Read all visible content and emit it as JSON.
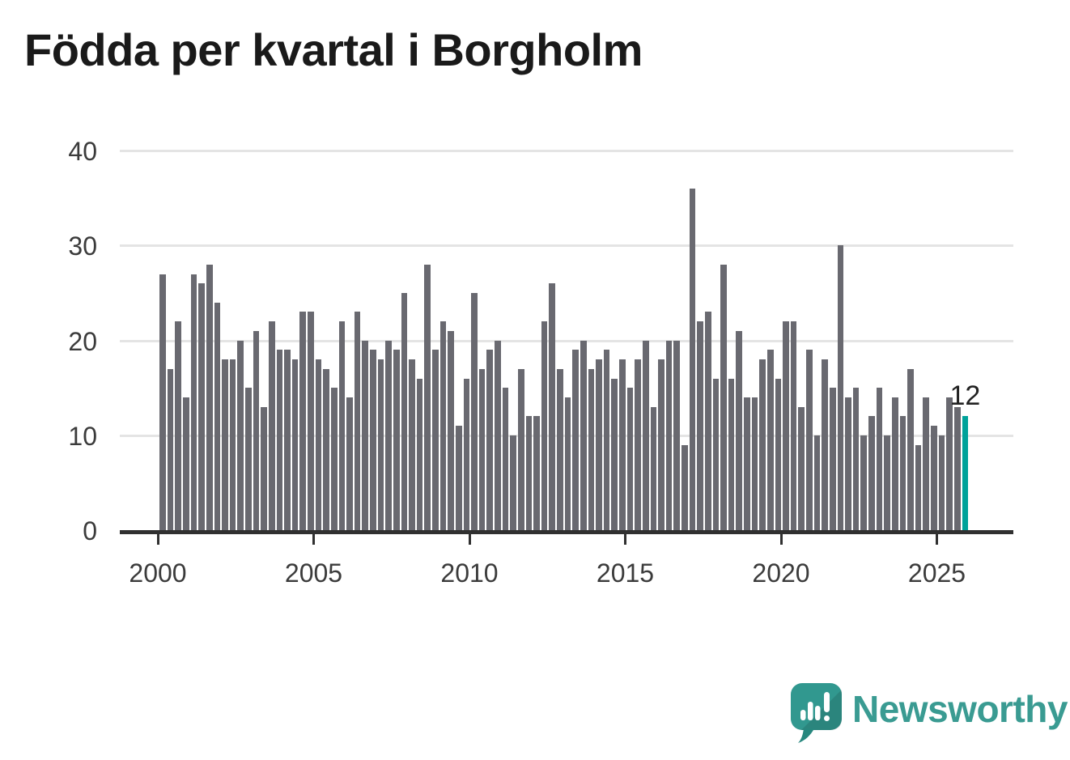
{
  "title": "Födda per kvartal i Borgholm",
  "branding": {
    "wordmark": "Newsworthy",
    "logo_icon": "speech-bubble-bar-chart-exclamation-icon"
  },
  "chart_data": {
    "type": "bar",
    "title": "Födda per kvartal i Borgholm",
    "xlabel": "",
    "ylabel": "",
    "ylim": [
      0,
      40
    ],
    "y_ticks": [
      0,
      10,
      20,
      30,
      40
    ],
    "x_tick_labels": [
      "2000",
      "2005",
      "2010",
      "2015",
      "2020",
      "2025"
    ],
    "grid": "horizontal",
    "legend": "none",
    "highlight_last_bar": true,
    "annotation_label": "12",
    "categories": [
      "2000 Q1",
      "2000 Q2",
      "2000 Q3",
      "2000 Q4",
      "2001 Q1",
      "2001 Q2",
      "2001 Q3",
      "2001 Q4",
      "2002 Q1",
      "2002 Q2",
      "2002 Q3",
      "2002 Q4",
      "2003 Q1",
      "2003 Q2",
      "2003 Q3",
      "2003 Q4",
      "2004 Q1",
      "2004 Q2",
      "2004 Q3",
      "2004 Q4",
      "2005 Q1",
      "2005 Q2",
      "2005 Q3",
      "2005 Q4",
      "2006 Q1",
      "2006 Q2",
      "2006 Q3",
      "2006 Q4",
      "2007 Q1",
      "2007 Q2",
      "2007 Q3",
      "2007 Q4",
      "2008 Q1",
      "2008 Q2",
      "2008 Q3",
      "2008 Q4",
      "2009 Q1",
      "2009 Q2",
      "2009 Q3",
      "2009 Q4",
      "2010 Q1",
      "2010 Q2",
      "2010 Q3",
      "2010 Q4",
      "2011 Q1",
      "2011 Q2",
      "2011 Q3",
      "2011 Q4",
      "2012 Q1",
      "2012 Q2",
      "2012 Q3",
      "2012 Q4",
      "2013 Q1",
      "2013 Q2",
      "2013 Q3",
      "2013 Q4",
      "2014 Q1",
      "2014 Q2",
      "2014 Q3",
      "2014 Q4",
      "2015 Q1",
      "2015 Q2",
      "2015 Q3",
      "2015 Q4",
      "2016 Q1",
      "2016 Q2",
      "2016 Q3",
      "2016 Q4",
      "2017 Q1",
      "2017 Q2",
      "2017 Q3",
      "2017 Q4",
      "2018 Q1",
      "2018 Q2",
      "2018 Q3",
      "2018 Q4",
      "2019 Q1",
      "2019 Q2",
      "2019 Q3",
      "2019 Q4",
      "2020 Q1",
      "2020 Q2",
      "2020 Q3",
      "2020 Q4",
      "2021 Q1",
      "2021 Q2",
      "2021 Q3",
      "2021 Q4",
      "2022 Q1",
      "2022 Q2",
      "2022 Q3",
      "2022 Q4",
      "2023 Q1",
      "2023 Q2",
      "2023 Q3",
      "2023 Q4",
      "2024 Q1",
      "2024 Q2",
      "2024 Q3",
      "2024 Q4",
      "2025 Q1",
      "2025 Q2",
      "2025 Q3",
      "2025 Q4"
    ],
    "values": [
      27,
      17,
      22,
      14,
      27,
      26,
      28,
      24,
      18,
      18,
      20,
      15,
      21,
      13,
      22,
      19,
      19,
      18,
      23,
      23,
      18,
      17,
      15,
      22,
      14,
      23,
      20,
      19,
      18,
      20,
      19,
      25,
      18,
      16,
      28,
      19,
      22,
      21,
      11,
      16,
      25,
      17,
      19,
      20,
      15,
      10,
      17,
      12,
      12,
      22,
      26,
      17,
      14,
      19,
      20,
      17,
      18,
      19,
      16,
      18,
      15,
      18,
      20,
      13,
      18,
      20,
      20,
      9,
      36,
      22,
      23,
      16,
      28,
      16,
      21,
      14,
      14,
      18,
      19,
      16,
      22,
      22,
      13,
      19,
      10,
      18,
      15,
      30,
      14,
      15,
      10,
      12,
      15,
      10,
      14,
      12,
      17,
      9,
      14,
      11,
      10,
      14,
      13,
      12
    ],
    "colors": {
      "bar": "#696970",
      "highlight": "#00a29a",
      "grid": "#e4e4e4",
      "axis": "#303030",
      "tick_text": "#3b3b3b",
      "title_text": "#1a1a1a",
      "brand_teal": "#3a9b92"
    }
  }
}
